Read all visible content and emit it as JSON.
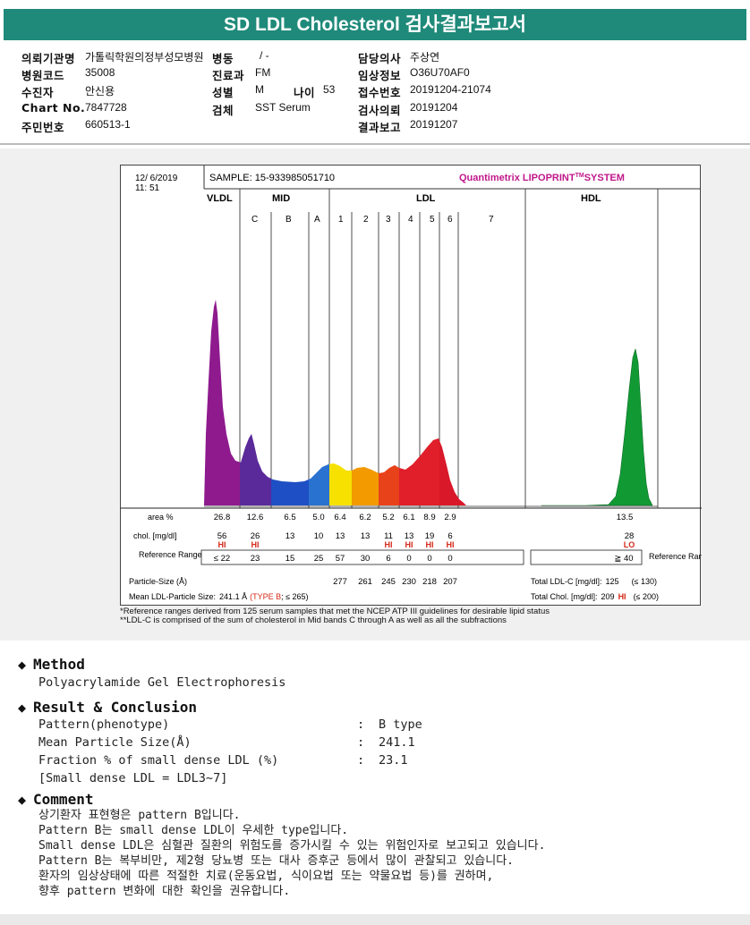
{
  "title": "SD LDL Cholesterol 검사결과보고서",
  "info": {
    "hospital_label": "의뢰기관명",
    "hospital": "가톨릭학원의정부성모병원",
    "ward_label": "병동",
    "ward": "/ -",
    "doctor_label": "담당의사",
    "doctor": "주상연",
    "code_label": "병원코드",
    "code": "35008",
    "dept_label": "진료과",
    "dept": "FM",
    "clinical_label": "임상정보",
    "clinical": "O36U70AF0",
    "patient_label": "수진자",
    "patient": "안신용",
    "sex_label": "성별",
    "sex": "M",
    "age_label": "나이",
    "age": "53",
    "receipt_label": "접수번호",
    "receipt": "20191204-21074",
    "chart_label": "Chart No.",
    "chart": "7847728",
    "specimen_label": "검체",
    "specimen": "SST Serum",
    "request_label": "검사의뢰",
    "request": "20191204",
    "id_label": "주민번호",
    "id": "660513-1",
    "result_label": "결과보고",
    "result": "20191207"
  },
  "report": {
    "date": "12/ 6/2019",
    "time": "11: 51",
    "sample": "SAMPLE:  15-933985051710",
    "brand": "Quantimetrix LIPOPRINT",
    "brand_tm": "TM",
    "brand_system": "SYSTEM",
    "groups": [
      "VLDL",
      "MID",
      "LDL",
      "HDL"
    ],
    "bands": [
      "C",
      "B",
      "A",
      "1",
      "2",
      "3",
      "4",
      "5",
      "6",
      "7"
    ],
    "rows": {
      "area_label": "area %",
      "chol_label": "chol. [mg/dl]",
      "ref_label": "Reference Range",
      "ref_label_right": "Reference Range",
      "area": [
        "26.8",
        "12.6",
        "6.5",
        "5.0",
        "6.4",
        "6.2",
        "5.2",
        "6.1",
        "8.9",
        "2.9"
      ],
      "chol": [
        "56",
        "26",
        "13",
        "10",
        "13",
        "13",
        "11",
        "13",
        "19",
        "6"
      ],
      "flags": [
        "HI",
        "HI",
        "",
        "",
        "",
        "",
        "HI",
        "HI",
        "HI",
        "HI"
      ],
      "ref": [
        "≤ 22",
        "23",
        "15",
        "25",
        "57",
        "30",
        "6",
        "0",
        "0",
        "0"
      ],
      "hdl_area": "13.5",
      "hdl_chol": "28",
      "hdl_flag": "LO",
      "hdl_ref": "≧ 40"
    },
    "particle_label": "Particle-Size (Å)",
    "particle_sizes": [
      "277",
      "261",
      "245",
      "230",
      "218",
      "207"
    ],
    "mean_label": "Mean LDL-Particle Size:",
    "mean_value": "241.1 Å",
    "mean_type": "(TYPE B",
    "mean_ref": "; ≤ 265)",
    "total_ldl_label": "Total LDL-C [mg/dl]:",
    "total_ldl": "125",
    "total_ldl_ref": "(≤ 130)",
    "total_chol_label": "Total Chol. [mg/dl]:",
    "total_chol": "209",
    "total_chol_flag": "HI",
    "total_chol_ref": "(≤ 200)",
    "footnote1": "*Reference ranges derived from 125 serum samples that met the NCEP ATP III guidelines for desirable lipid status",
    "footnote2": "**LDL-C is comprised of the sum of cholesterol in Mid bands C through A as well as all the subfractions",
    "colors": {
      "vldl": "#8e1a8e",
      "c": "#5a2a9a",
      "b": "#1f4fc4",
      "a": "#2a72d0",
      "b1": "#f6e100",
      "b2": "#f29a00",
      "b3": "#e8421a",
      "b4": "#e01f2a",
      "b5": "#e01f2a",
      "b6": "#d9182a",
      "hdl": "#119a34",
      "brand": "#c0178a",
      "flag": "#d42a1a"
    }
  },
  "method": {
    "heading": "Method",
    "text": "Polyacrylamide Gel Electrophoresis"
  },
  "result": {
    "heading": "Result & Conclusion",
    "pattern_label": "Pattern(phenotype)",
    "pattern_value": "B type",
    "size_label": "Mean Particle Size(Å)",
    "size_value": "241.1",
    "fraction_label": "Fraction % of small dense LDL (%)",
    "fraction_value": "23.1",
    "note": "[Small dense LDL = LDL3~7]",
    "colon": ":"
  },
  "comment": {
    "heading": "Comment",
    "lines": [
      "상기환자 표현형은 pattern B입니다.",
      "Pattern B는 small dense LDL이 우세한 type입니다.",
      "Small dense LDL은 심혈관 질환의 위험도를 증가시킬 수 있는 위험인자로 보고되고 있습니다.",
      "Pattern B는 복부비만, 제2형 당뇨병 또는 대사 증후군 등에서 많이 관찰되고 있습니다.",
      "환자의 임상상태에 따른 적절한 치료(운동요법, 식이요법 또는 약물요법 등)를 권하며,",
      "향후 pattern 변화에 대한 확인을 권유합니다."
    ]
  }
}
